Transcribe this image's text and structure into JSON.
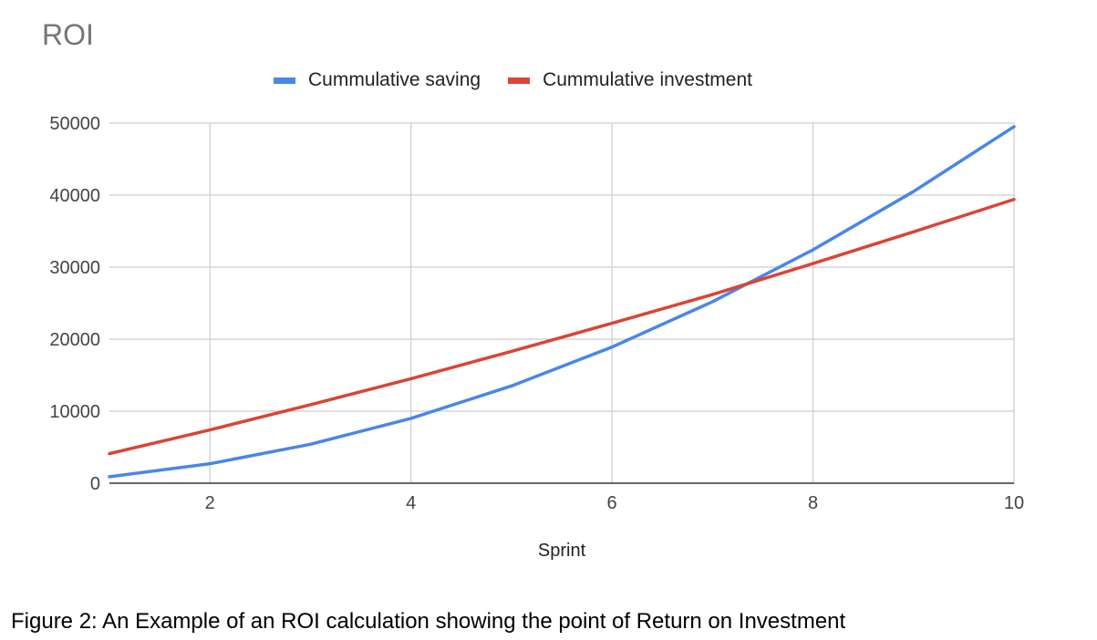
{
  "chart_data": {
    "type": "line",
    "title": "ROI",
    "xlabel": "Sprint",
    "ylabel": "",
    "x": [
      1,
      2,
      3,
      4,
      5,
      6,
      7,
      8,
      9,
      10
    ],
    "xlim": [
      1,
      10
    ],
    "ylim": [
      0,
      50000
    ],
    "xticks": [
      2,
      4,
      6,
      8,
      10
    ],
    "yticks": [
      0,
      10000,
      20000,
      30000,
      40000,
      50000
    ],
    "grid": true,
    "legend_position": "top",
    "series": [
      {
        "name": "Cummulative saving",
        "color": "#4a86e8",
        "values": [
          900,
          2700,
          5400,
          9000,
          13500,
          18900,
          25200,
          32400,
          40500,
          49500
        ]
      },
      {
        "name": "Cummulative investment",
        "color": "#db4437",
        "values": [
          4100,
          7400,
          10900,
          14500,
          18300,
          22200,
          26200,
          30500,
          34900,
          39400
        ]
      }
    ]
  },
  "caption": "Figure 2: An Example of an ROI calculation showing the point of Return on Investment"
}
